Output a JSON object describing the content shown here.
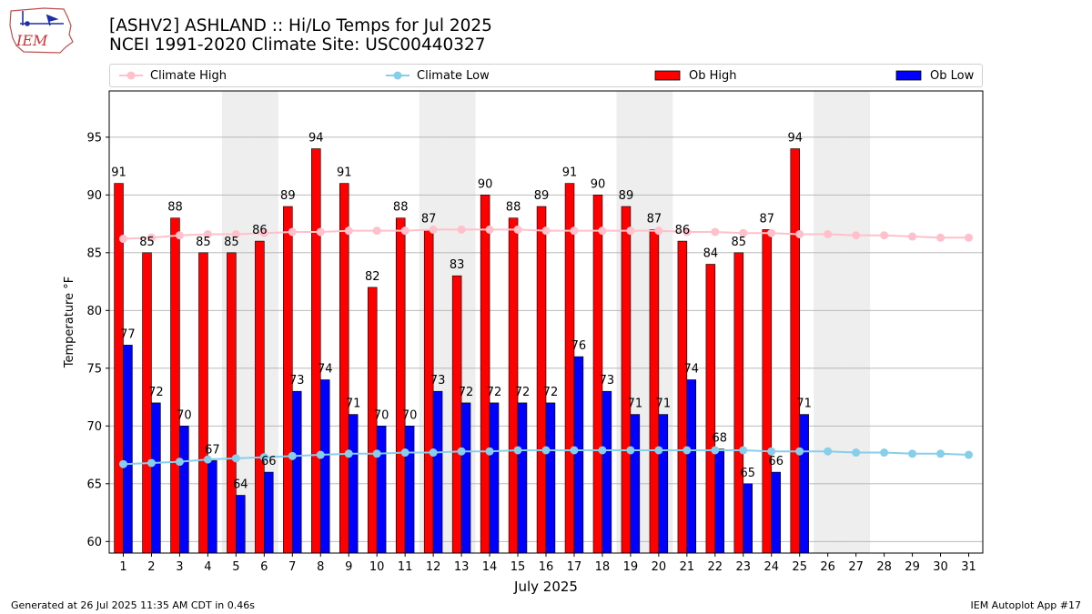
{
  "logo": {
    "text": "IEM"
  },
  "title_line1": "[ASHV2] ASHLAND :: Hi/Lo Temps for Jul 2025",
  "title_line2": "NCEI 1991-2020 Climate Site: USC00440327",
  "footer_left": "Generated at 26 Jul 2025 11:35 AM CDT in 0.46s",
  "footer_right": "IEM Autoplot App #17",
  "colors": {
    "climate_high": "#ffc0cb",
    "climate_low": "#87ceeb",
    "ob_high": "#ff0000",
    "ob_low": "#0000ff",
    "weekend_shade": "#eeeeee",
    "grid": "#b0b0b0"
  },
  "chart_data": {
    "type": "bar",
    "xlabel": "July 2025",
    "ylabel": "Temperature °F",
    "ylim": [
      59,
      99
    ],
    "yticks": [
      60,
      65,
      70,
      75,
      80,
      85,
      90,
      95
    ],
    "grid": "horizontal",
    "legend_placement": "top",
    "days": [
      1,
      2,
      3,
      4,
      5,
      6,
      7,
      8,
      9,
      10,
      11,
      12,
      13,
      14,
      15,
      16,
      17,
      18,
      19,
      20,
      21,
      22,
      23,
      24,
      25,
      26,
      27,
      28,
      29,
      30,
      31
    ],
    "weekend_days": [
      5,
      6,
      12,
      13,
      19,
      20,
      26,
      27
    ],
    "series": [
      {
        "name": "Climate High",
        "kind": "line",
        "values": [
          86.2,
          86.3,
          86.5,
          86.6,
          86.6,
          86.7,
          86.8,
          86.8,
          86.9,
          86.9,
          86.9,
          87.0,
          87.0,
          87.0,
          87.0,
          86.9,
          86.9,
          86.9,
          86.9,
          86.9,
          86.8,
          86.8,
          86.7,
          86.7,
          86.6,
          86.6,
          86.5,
          86.5,
          86.4,
          86.3,
          86.3
        ]
      },
      {
        "name": "Climate Low",
        "kind": "line",
        "values": [
          66.7,
          66.8,
          66.9,
          67.1,
          67.2,
          67.3,
          67.4,
          67.5,
          67.6,
          67.6,
          67.7,
          67.7,
          67.8,
          67.8,
          67.9,
          67.9,
          67.9,
          67.9,
          67.9,
          67.9,
          67.9,
          67.9,
          67.9,
          67.8,
          67.8,
          67.8,
          67.7,
          67.7,
          67.6,
          67.6,
          67.5
        ]
      },
      {
        "name": "Ob High",
        "kind": "bar",
        "values": [
          91,
          85,
          88,
          85,
          85,
          86,
          89,
          94,
          91,
          82,
          88,
          87,
          83,
          90,
          88,
          89,
          91,
          90,
          89,
          87,
          86,
          84,
          85,
          87,
          94
        ]
      },
      {
        "name": "Ob Low",
        "kind": "bar",
        "values": [
          77,
          72,
          70,
          67,
          64,
          66,
          73,
          74,
          71,
          70,
          70,
          73,
          72,
          72,
          72,
          72,
          76,
          73,
          71,
          71,
          74,
          68,
          65,
          66,
          71
        ]
      }
    ]
  }
}
